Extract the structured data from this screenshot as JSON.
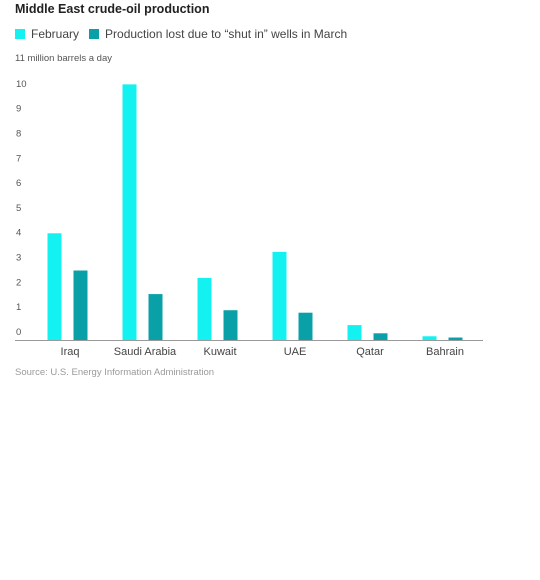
{
  "chart_data": {
    "type": "bar",
    "title": "Middle East crude-oil production",
    "unit_label": "11 million barrels a day",
    "source": "Source: U.S. Energy Information Administration",
    "categories": [
      "Iraq",
      "Saudi Arabia",
      "Kuwait",
      "UAE",
      "Qatar",
      "Bahrain"
    ],
    "series": [
      {
        "name": "February",
        "color": "#14f1f1",
        "values": [
          4.3,
          10.3,
          2.5,
          3.55,
          0.6,
          0.15
        ]
      },
      {
        "name": "Production lost due to “shut in” wells in March",
        "color": "#0aa0a8",
        "values": [
          2.8,
          1.85,
          1.2,
          1.1,
          0.27,
          0.1
        ]
      }
    ],
    "ylim": [
      0,
      11
    ],
    "yticks": [
      "0",
      "1",
      "2",
      "3",
      "4",
      "5",
      "6",
      "7",
      "8",
      "9",
      "10"
    ],
    "grid": false
  }
}
